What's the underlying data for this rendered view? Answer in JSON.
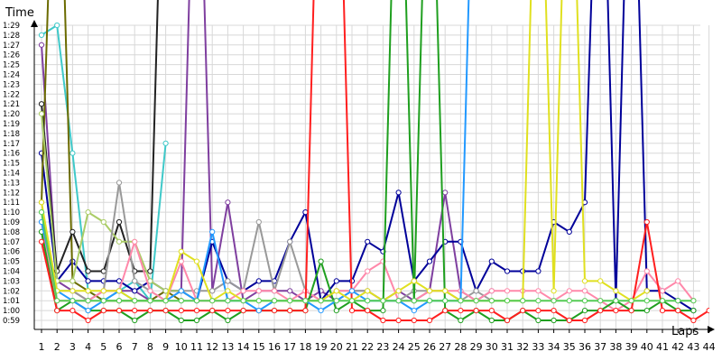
{
  "chart_data": {
    "type": "line",
    "title": "",
    "xlabel": "Laps",
    "ylabel": "Time",
    "grid": true,
    "xlim": [
      1,
      44
    ],
    "ylim_seconds": [
      59,
      90
    ],
    "y_ticks": [
      "0:59",
      "1:00",
      "1:01",
      "1:02",
      "1:03",
      "1:04",
      "1:05",
      "1:06",
      "1:07",
      "1:08",
      "1:09",
      "1:10",
      "1:11",
      "1:12",
      "1:13",
      "1:14",
      "1:15",
      "1:16",
      "1:17",
      "1:18",
      "1:19",
      "1:20",
      "1:21",
      "1:22",
      "1:23",
      "1:24",
      "1:25",
      "1:26",
      "1:27",
      "1:28",
      "1:29"
    ],
    "x_ticks": [
      1,
      2,
      3,
      4,
      5,
      6,
      7,
      8,
      9,
      10,
      11,
      12,
      13,
      14,
      15,
      16,
      17,
      18,
      19,
      20,
      21,
      22,
      23,
      24,
      25,
      26,
      27,
      28,
      29,
      30,
      31,
      32,
      33,
      34,
      35,
      36,
      37,
      38,
      39,
      40,
      41,
      42,
      43,
      44
    ],
    "series_values_unit": "seconds (lap time)",
    "series": [
      {
        "color": "#3fc9c9",
        "values": [
          88,
          89,
          76,
          62,
          61,
          62,
          63,
          61,
          77
        ]
      },
      {
        "color": "#7f3f9f",
        "values": [
          87,
          63,
          62,
          61,
          62,
          62,
          62,
          61,
          62,
          62,
          120,
          62,
          71,
          61,
          62,
          62,
          62,
          61,
          62,
          61,
          62,
          62,
          61,
          62,
          61,
          62,
          72,
          62,
          61,
          62
        ]
      },
      {
        "color": "#000099",
        "values": [
          76,
          63,
          65,
          63,
          63,
          63,
          62,
          63,
          62,
          62,
          61,
          67,
          63,
          62,
          63,
          63,
          67,
          70,
          61,
          63,
          63,
          67,
          66,
          72,
          63,
          65,
          67,
          67,
          62,
          65,
          64,
          64,
          64,
          69,
          68,
          71,
          120,
          61,
          120,
          62,
          62,
          61,
          60
        ]
      },
      {
        "color": "#6b6b00",
        "values": [
          71,
          120,
          63,
          62,
          61,
          61,
          61,
          61,
          62,
          61
        ]
      },
      {
        "color": "#222222",
        "values": [
          81,
          64,
          68,
          64,
          64,
          69,
          64,
          64,
          120
        ]
      },
      {
        "color": "#aacc66",
        "values": [
          80,
          63,
          63,
          70,
          69,
          67,
          67,
          63,
          62,
          62,
          61
        ]
      },
      {
        "color": "#999999",
        "values": [
          68,
          62,
          62,
          61,
          62,
          73,
          63,
          62,
          61,
          62,
          62,
          62,
          63,
          62,
          69,
          62,
          67,
          62,
          61,
          62,
          62,
          62,
          61,
          61,
          62,
          62,
          62,
          61,
          62,
          61
        ]
      },
      {
        "color": "#ff88aa",
        "values": [
          69,
          61,
          61,
          61,
          62,
          62,
          67,
          62,
          61,
          65,
          61,
          61,
          61,
          62,
          62,
          62,
          61,
          62,
          61,
          62,
          62,
          64,
          65,
          61,
          61,
          62,
          62,
          62,
          61,
          62,
          62,
          62,
          62,
          61,
          62,
          62,
          61,
          60,
          61,
          64,
          62,
          63,
          61
        ]
      },
      {
        "color": "#1f9f1f",
        "values": [
          68,
          60,
          61,
          60,
          60,
          60,
          59,
          60,
          60,
          59,
          59,
          60,
          59,
          60,
          60,
          60,
          60,
          60,
          65,
          60,
          61,
          60,
          60,
          120,
          61,
          120,
          60,
          59,
          60,
          59,
          59,
          60,
          59,
          59,
          59,
          60,
          60,
          61,
          60,
          60,
          61,
          60,
          60
        ]
      },
      {
        "color": "#ff1f1f",
        "values": [
          67,
          60,
          60,
          59,
          60,
          60,
          60,
          60,
          60,
          60,
          60,
          60,
          60,
          60,
          60,
          60,
          60,
          60,
          120,
          120,
          60,
          60,
          59,
          59,
          59,
          59,
          60,
          60,
          60,
          60,
          59,
          60,
          60,
          60,
          59,
          59,
          60,
          60,
          60,
          69,
          60,
          60,
          59,
          60
        ]
      },
      {
        "color": "#2299ff",
        "values": [
          69,
          62,
          61,
          60,
          61,
          62,
          61,
          61,
          61,
          62,
          61,
          68,
          61,
          61,
          60,
          61,
          61,
          61,
          60,
          61,
          62,
          61,
          61,
          61,
          60,
          61,
          61,
          61,
          120,
          120,
          120
        ]
      },
      {
        "color": "#e0e020",
        "values": [
          71,
          62,
          62,
          62,
          62,
          62,
          61,
          61,
          61,
          66,
          65,
          61,
          62,
          61,
          61,
          61,
          61,
          61,
          61,
          62,
          61,
          62,
          61,
          62,
          63,
          62,
          62,
          61,
          61,
          61,
          61,
          61,
          120,
          62,
          120,
          63,
          63,
          62,
          61,
          62
        ]
      },
      {
        "color": "#55cc55",
        "values": [
          70,
          61,
          61,
          61,
          61,
          61,
          61,
          61,
          61,
          61,
          61,
          61,
          61,
          61,
          61,
          61,
          61,
          61,
          61,
          61,
          61,
          61,
          61,
          61,
          61,
          61,
          61,
          61,
          61,
          61,
          61,
          61,
          61,
          61,
          61,
          61,
          61,
          61,
          61,
          61,
          61,
          61,
          61
        ]
      }
    ]
  }
}
